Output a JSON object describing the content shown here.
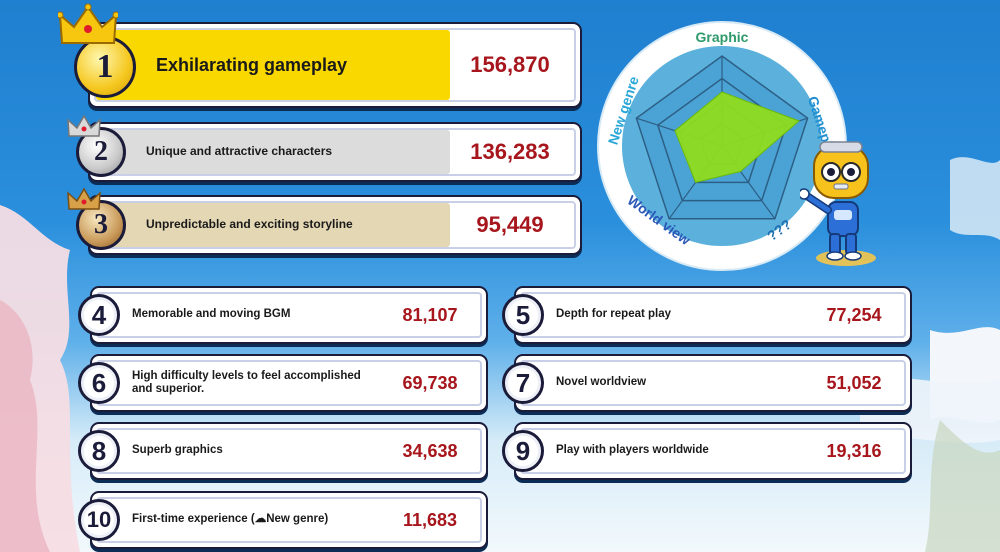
{
  "ranking": [
    {
      "rank": "1",
      "label": "Exhilarating gameplay",
      "value": "156,870"
    },
    {
      "rank": "2",
      "label": "Unique and attractive characters",
      "value": "136,283"
    },
    {
      "rank": "3",
      "label": "Unpredictable and exciting storyline",
      "value": "95,449"
    },
    {
      "rank": "4",
      "label": "Memorable and moving BGM",
      "value": "81,107"
    },
    {
      "rank": "5",
      "label": "Depth for repeat play",
      "value": "77,254"
    },
    {
      "rank": "6",
      "label": "High difficulty levels to feel accomplished and superior.",
      "value": "69,738"
    },
    {
      "rank": "7",
      "label": "Novel worldview",
      "value": "51,052"
    },
    {
      "rank": "8",
      "label": "Superb graphics",
      "value": "34,638"
    },
    {
      "rank": "9",
      "label": "Play with players worldwide",
      "value": "19,316"
    },
    {
      "rank": "10",
      "label": "First-time experience (☁New genre)",
      "value": "11,683"
    }
  ],
  "radar": {
    "axes": [
      "Graphic",
      "Gameplay",
      "???",
      "World view",
      "New genre"
    ],
    "levels": [
      0.6,
      0.9,
      0.35,
      0.5,
      0.55
    ]
  },
  "colors": {
    "gold": "#f9d800",
    "silver": "#dcdcdc",
    "bronze": "#e3d7b4",
    "value_red": "#a6161c",
    "radar_fill": "#8fdc1e",
    "radar_bg": "#5bb1dc"
  },
  "icons": {
    "crown": "crown-icon",
    "mascot": "robot-mascot"
  }
}
